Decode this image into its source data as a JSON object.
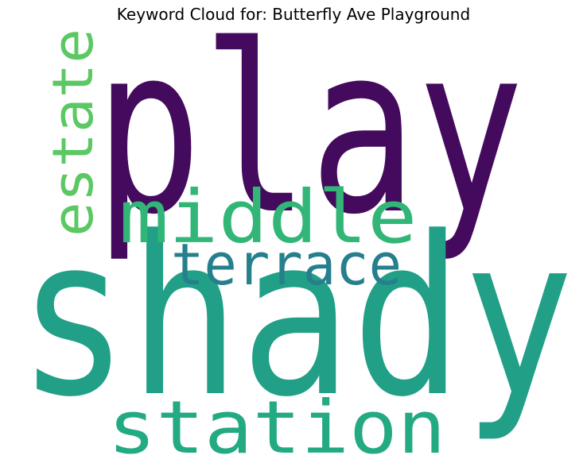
{
  "title": "Keyword Cloud for: Butterfly Ave Playground",
  "words": [
    {
      "text": "play",
      "color": "#440a5d"
    },
    {
      "text": "shady",
      "color": "#21a087"
    },
    {
      "text": "middle",
      "color": "#31b678"
    },
    {
      "text": "terrace",
      "color": "#267f8d"
    },
    {
      "text": "station",
      "color": "#23aa83"
    },
    {
      "text": "estate",
      "color": "#5bc863"
    }
  ]
}
